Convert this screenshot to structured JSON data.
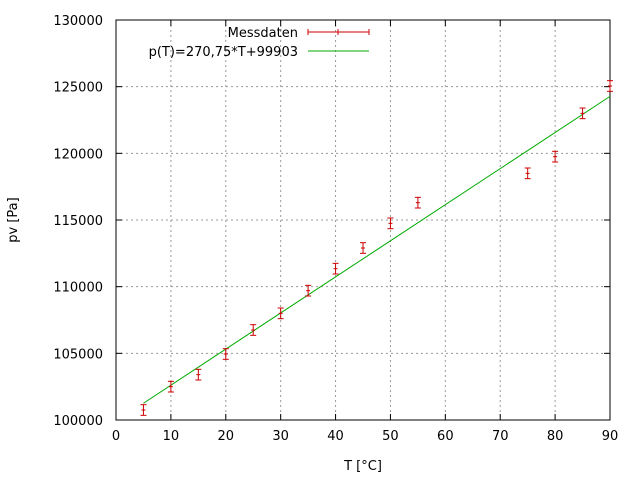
{
  "chart_data": {
    "type": "scatter",
    "title": "",
    "xlabel": "T [°C]",
    "ylabel": "pv [Pa]",
    "xlim": [
      0,
      90
    ],
    "ylim": [
      100000,
      130000
    ],
    "x_ticks": [
      0,
      10,
      20,
      30,
      40,
      50,
      60,
      70,
      80,
      90
    ],
    "y_ticks": [
      100000,
      105000,
      110000,
      115000,
      120000,
      125000,
      130000
    ],
    "x_tick_labels": [
      "0",
      "10",
      "20",
      "30",
      "40",
      "50",
      "60",
      "70",
      "80",
      "90"
    ],
    "y_tick_labels": [
      "100000",
      "105000",
      "110000",
      "115000",
      "120000",
      "125000",
      "130000"
    ],
    "grid": true,
    "legend_position": "top",
    "series": [
      {
        "name": "Messdaten",
        "kind": "points-with-errorbars",
        "color": "#cc0000",
        "points": [
          {
            "x": 5,
            "y": 100750,
            "err": 400
          },
          {
            "x": 10,
            "y": 102500,
            "err": 400
          },
          {
            "x": 15,
            "y": 103400,
            "err": 400
          },
          {
            "x": 20,
            "y": 104950,
            "err": 400
          },
          {
            "x": 25,
            "y": 106750,
            "err": 400
          },
          {
            "x": 30,
            "y": 108000,
            "err": 400
          },
          {
            "x": 35,
            "y": 109700,
            "err": 400
          },
          {
            "x": 40,
            "y": 111350,
            "err": 400
          },
          {
            "x": 45,
            "y": 112900,
            "err": 400
          },
          {
            "x": 50,
            "y": 114750,
            "err": 400
          },
          {
            "x": 55,
            "y": 116300,
            "err": 400
          },
          {
            "x": 75,
            "y": 118500,
            "err": 400
          },
          {
            "x": 80,
            "y": 119750,
            "err": 400
          },
          {
            "x": 85,
            "y": 123000,
            "err": 400
          },
          {
            "x": 90,
            "y": 125050,
            "err": 400
          }
        ]
      },
      {
        "name": "p(T)=270,75*T+99903",
        "kind": "fit-line",
        "color": "#00aa00",
        "slope": 270.75,
        "intercept": 99903,
        "x_range": [
          5,
          90
        ]
      }
    ]
  }
}
